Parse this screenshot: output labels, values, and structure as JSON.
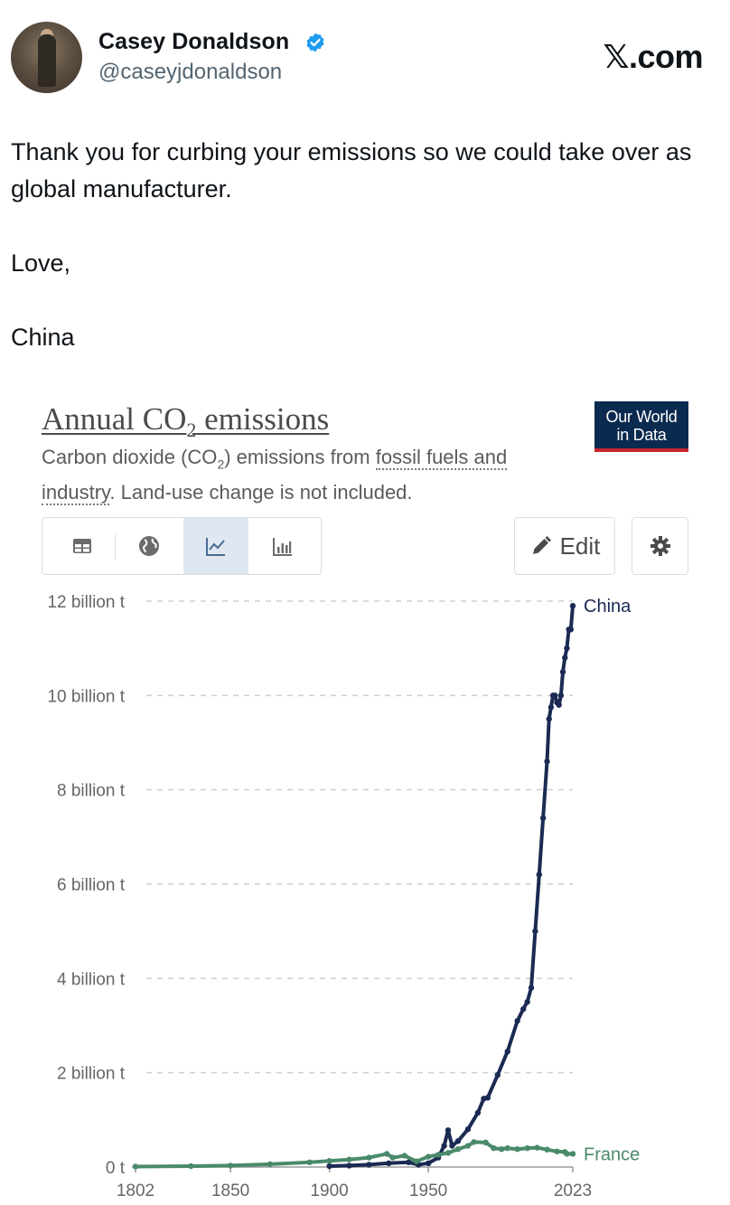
{
  "tweet": {
    "author_name": "Casey Donaldson",
    "author_handle": "@caseyjdonaldson",
    "site": "𝕏.com",
    "verified_color": "#1d9bf0",
    "text": "Thank you for curbing your emissions so we could take over as global manufacturer.\n\nLove,\n\nChina"
  },
  "chart_card": {
    "title_main": "Annual CO",
    "title_sub": "2",
    "title_end": " emissions",
    "subtitle_a": "Carbon dioxide (CO",
    "subtitle_sub": "2",
    "subtitle_b": ") emissions from ",
    "subtitle_link1": "fossil fuels and",
    "subtitle_link2": "industry",
    "subtitle_c": ". Land-use change is not included.",
    "logo_line1": "Our World",
    "logo_line2": "in Data",
    "tabs": [
      "table-icon",
      "globe-icon",
      "line-chart-icon",
      "bar-chart-icon"
    ],
    "active_tab": "line-chart-icon",
    "edit_label": "Edit"
  },
  "chart_data": {
    "type": "line",
    "title": "Annual CO₂ emissions",
    "subtitle": "Carbon dioxide (CO₂) emissions from fossil fuels and industry. Land-use change is not included.",
    "xlim": [
      1802,
      2023
    ],
    "ylim": [
      0,
      12000000000
    ],
    "x_ticks": [
      1802,
      1850,
      1900,
      1950,
      2023
    ],
    "y_ticks": [
      {
        "value": 0,
        "label": "0 t"
      },
      {
        "value": 2000000000,
        "label": "2 billion t"
      },
      {
        "value": 4000000000,
        "label": "4 billion t"
      },
      {
        "value": 6000000000,
        "label": "6 billion t"
      },
      {
        "value": 8000000000,
        "label": "8 billion t"
      },
      {
        "value": 10000000000,
        "label": "10 billion t"
      },
      {
        "value": 12000000000,
        "label": "12 billion t"
      }
    ],
    "grid": true,
    "legend": "end-of-line labels",
    "series": [
      {
        "name": "China",
        "color": "#1a2a52",
        "points": [
          [
            1900,
            20000000.0
          ],
          [
            1910,
            30000000.0
          ],
          [
            1920,
            50000000.0
          ],
          [
            1930,
            80000000.0
          ],
          [
            1940,
            100000000.0
          ],
          [
            1945,
            50000000.0
          ],
          [
            1950,
            80000000.0
          ],
          [
            1955,
            200000000.0
          ],
          [
            1958,
            450000000.0
          ],
          [
            1960,
            780000000.0
          ],
          [
            1962,
            450000000.0
          ],
          [
            1965,
            550000000.0
          ],
          [
            1970,
            800000000.0
          ],
          [
            1975,
            1150000000.0
          ],
          [
            1978,
            1450000000.0
          ],
          [
            1980,
            1470000000.0
          ],
          [
            1985,
            1950000000.0
          ],
          [
            1990,
            2450000000.0
          ],
          [
            1995,
            3100000000.0
          ],
          [
            1998,
            3350000000.0
          ],
          [
            2000,
            3500000000.0
          ],
          [
            2002,
            3800000000.0
          ],
          [
            2004,
            5000000000.0
          ],
          [
            2006,
            6200000000.0
          ],
          [
            2008,
            7400000000.0
          ],
          [
            2010,
            8600000000.0
          ],
          [
            2011,
            9500000000.0
          ],
          [
            2012,
            9750000000.0
          ],
          [
            2013,
            10000000000.0
          ],
          [
            2014,
            10000000000.0
          ],
          [
            2015,
            9850000000.0
          ],
          [
            2016,
            9800000000.0
          ],
          [
            2017,
            10000000000.0
          ],
          [
            2018,
            10500000000.0
          ],
          [
            2019,
            10800000000.0
          ],
          [
            2020,
            11000000000.0
          ],
          [
            2021,
            11400000000.0
          ],
          [
            2022,
            11400000000.0
          ],
          [
            2023,
            11900000000.0
          ]
        ]
      },
      {
        "name": "France",
        "color": "#4a8a6a",
        "points": [
          [
            1802,
            10000000.0
          ],
          [
            1830,
            20000000.0
          ],
          [
            1850,
            30000000.0
          ],
          [
            1870,
            60000000.0
          ],
          [
            1890,
            100000000.0
          ],
          [
            1900,
            130000000.0
          ],
          [
            1910,
            160000000.0
          ],
          [
            1920,
            200000000.0
          ],
          [
            1929,
            280000000.0
          ],
          [
            1932,
            200000000.0
          ],
          [
            1938,
            240000000.0
          ],
          [
            1944,
            120000000.0
          ],
          [
            1950,
            220000000.0
          ],
          [
            1955,
            260000000.0
          ],
          [
            1960,
            300000000.0
          ],
          [
            1965,
            380000000.0
          ],
          [
            1970,
            450000000.0
          ],
          [
            1973,
            530000000.0
          ],
          [
            1979,
            520000000.0
          ],
          [
            1983,
            400000000.0
          ],
          [
            1987,
            380000000.0
          ],
          [
            1990,
            400000000.0
          ],
          [
            1995,
            380000000.0
          ],
          [
            2000,
            400000000.0
          ],
          [
            2005,
            410000000.0
          ],
          [
            2010,
            370000000.0
          ],
          [
            2015,
            330000000.0
          ],
          [
            2019,
            320000000.0
          ],
          [
            2020,
            280000000.0
          ],
          [
            2023,
            280000000.0
          ]
        ]
      }
    ]
  }
}
